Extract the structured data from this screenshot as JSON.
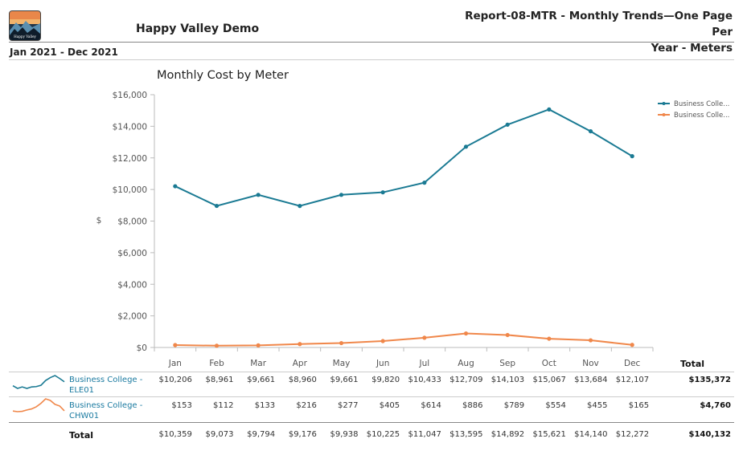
{
  "header": {
    "company": "Happy Valley Demo",
    "logo_text": "Happy Valley",
    "report_title_line1": "Report-08-MTR - Monthly Trends—One Page Per",
    "report_title_line2": "Year - Meters",
    "period": "Jan 2021 - Dec 2021"
  },
  "colors": {
    "series1": "#1a7a93",
    "series2": "#f0874a"
  },
  "chart_data": {
    "type": "line",
    "title": "Monthly Cost by Meter",
    "ylabel": "$",
    "xlabel": "",
    "ylim": [
      0,
      16000
    ],
    "yticks": [
      0,
      2000,
      4000,
      6000,
      8000,
      10000,
      12000,
      14000,
      16000
    ],
    "ytick_labels": [
      "$0",
      "$2,000",
      "$4,000",
      "$6,000",
      "$8,000",
      "$10,000",
      "$12,000",
      "$14,000",
      "$16,000"
    ],
    "categories": [
      "Jan",
      "Feb",
      "Mar",
      "Apr",
      "May",
      "Jun",
      "Jul",
      "Aug",
      "Sep",
      "Oct",
      "Nov",
      "Dec"
    ],
    "legend_position": "top-right",
    "series": [
      {
        "name": "Business Colle...",
        "values": [
          10206,
          8961,
          9661,
          8960,
          9661,
          9820,
          10433,
          12709,
          14103,
          15067,
          13684,
          12107
        ]
      },
      {
        "name": "Business Colle...",
        "values": [
          153,
          112,
          133,
          216,
          277,
          405,
          614,
          886,
          789,
          554,
          455,
          165
        ]
      }
    ]
  },
  "table": {
    "total_header": "Total",
    "rows": [
      {
        "label_line1": "Business College -",
        "label_line2": "ELE01",
        "cells": [
          "$10,206",
          "$8,961",
          "$9,661",
          "$8,960",
          "$9,661",
          "$9,820",
          "$10,433",
          "$12,709",
          "$14,103",
          "$15,067",
          "$13,684",
          "$12,107"
        ],
        "total": "$135,372"
      },
      {
        "label_line1": "Business College -",
        "label_line2": "CHW01",
        "cells": [
          "$153",
          "$112",
          "$133",
          "$216",
          "$277",
          "$405",
          "$614",
          "$886",
          "$789",
          "$554",
          "$455",
          "$165"
        ],
        "total": "$4,760"
      }
    ],
    "total_row": {
      "label": "Total",
      "cells": [
        "$10,359",
        "$9,073",
        "$9,794",
        "$9,176",
        "$9,938",
        "$10,225",
        "$11,047",
        "$13,595",
        "$14,892",
        "$15,621",
        "$14,140",
        "$12,272"
      ],
      "total": "$140,132"
    }
  }
}
